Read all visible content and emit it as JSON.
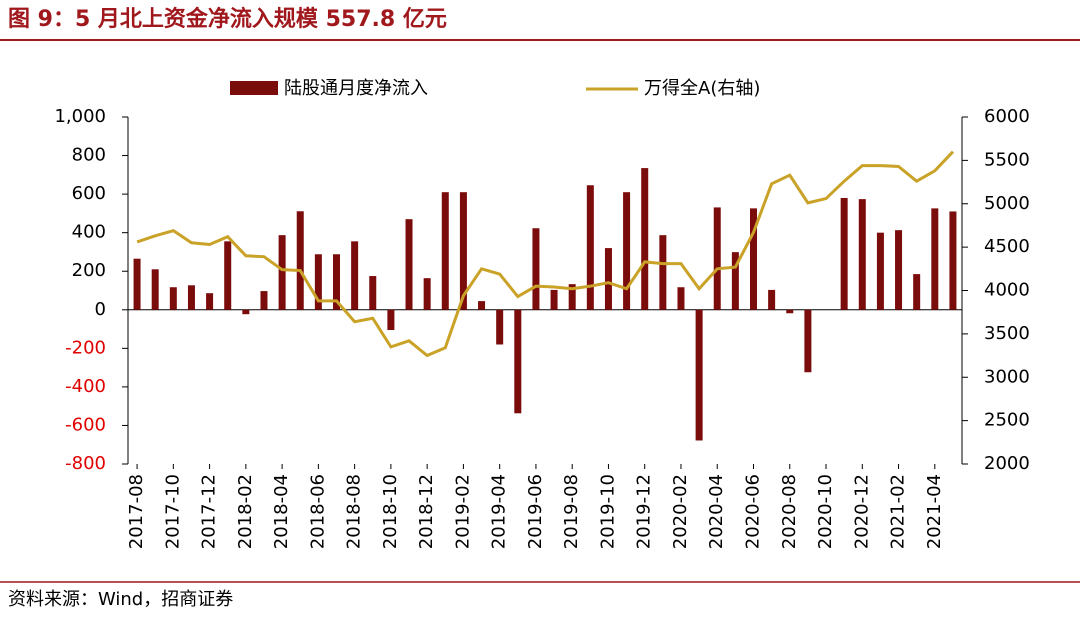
{
  "title": "图 9：5 月北上资金净流入规模 557.8 亿元",
  "source": "资料来源：Wind，招商证券",
  "chart_data": {
    "type": "bar-line",
    "categories": [
      "2017-08",
      null,
      "2017-10",
      null,
      "2017-12",
      null,
      "2018-02",
      null,
      "2018-04",
      null,
      "2018-06",
      null,
      "2018-08",
      null,
      "2018-10",
      null,
      "2018-12",
      null,
      "2019-02",
      null,
      "2019-04",
      null,
      "2019-06",
      null,
      "2019-08",
      null,
      "2019-10",
      null,
      "2019-12",
      null,
      "2020-02",
      null,
      "2020-04",
      null,
      "2020-06",
      null,
      "2020-08",
      null,
      "2020-10",
      null,
      "2020-12",
      null,
      "2021-02",
      null,
      "2021-04",
      null
    ],
    "series": [
      {
        "name": "陆股通月度净流入",
        "color": "#7b0c0c",
        "axis": "y",
        "values": [
          265,
          210,
          117,
          127,
          86,
          355,
          -23,
          97,
          387,
          511,
          288,
          288,
          355,
          175,
          -105,
          470,
          164,
          610,
          610,
          45,
          -180,
          -537,
          423,
          103,
          133,
          646,
          320,
          610,
          735,
          387,
          117,
          -678,
          531,
          299,
          526,
          103,
          -18,
          -324,
          0,
          580,
          574,
          400,
          413,
          185,
          526,
          510
        ]
      },
      {
        "name": "万得全A(右轴)",
        "color": "#c9a227",
        "axis": "y2",
        "values": [
          4560,
          4630,
          4690,
          4550,
          4530,
          4620,
          4400,
          4390,
          4240,
          4230,
          3880,
          3880,
          3640,
          3680,
          3350,
          3420,
          3250,
          3340,
          3940,
          4250,
          4190,
          3930,
          4050,
          4040,
          4020,
          4050,
          4090,
          4020,
          4330,
          4310,
          4310,
          4020,
          4250,
          4270,
          4670,
          5230,
          5330,
          5010,
          5060,
          5260,
          5440,
          5440,
          5430,
          5260,
          5380,
          5600
        ]
      }
    ],
    "ylim": [
      -800,
      1000
    ],
    "yticks": [
      {
        "value": 1000,
        "label": "1,000"
      },
      800,
      600,
      400,
      200,
      0,
      -200,
      -400,
      -600,
      -800
    ],
    "negative_tick_color": "#e00000",
    "y2lim": [
      2000,
      6000
    ],
    "y2ticks": [
      6000,
      5500,
      5000,
      4500,
      4000,
      3500,
      3000,
      2500,
      2000
    ]
  }
}
